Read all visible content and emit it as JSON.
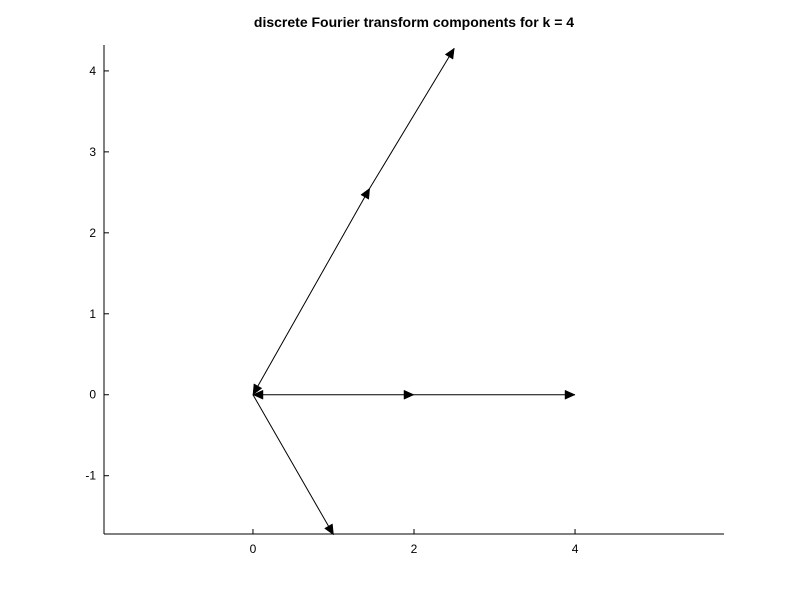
{
  "chart_data": {
    "type": "vector",
    "title": "discrete Fourier transform components for k = 4",
    "xlabel": "",
    "ylabel": "",
    "xlim": [
      -1.85,
      5.85
    ],
    "ylim": [
      -1.72,
      4.32
    ],
    "xticks": [
      0,
      2,
      4
    ],
    "xtick_labels": [
      "0",
      "2",
      "4"
    ],
    "yticks": [
      -1,
      0,
      1,
      2,
      3,
      4
    ],
    "ytick_labels": [
      "-1",
      "0",
      "1",
      "2",
      "3",
      "4"
    ],
    "grid": false,
    "arrows": [
      {
        "x0": 0,
        "y0": 0,
        "x1": 1.0,
        "y1": -1.73,
        "head": "end"
      },
      {
        "x0": 0,
        "y0": 0,
        "x1": 1.45,
        "y1": 2.55,
        "head": "both"
      },
      {
        "x0": 1.45,
        "y0": 2.55,
        "x1": 2.5,
        "y1": 4.28,
        "head": "end"
      },
      {
        "x0": 0,
        "y0": 0,
        "x1": 2.0,
        "y1": 0,
        "head": "both"
      },
      {
        "x0": 2.0,
        "y0": 0,
        "x1": 4.0,
        "y1": 0,
        "head": "end"
      }
    ]
  }
}
